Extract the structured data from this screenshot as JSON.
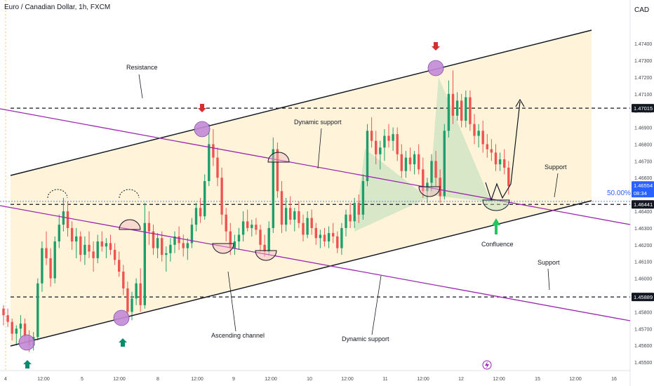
{
  "header": {
    "title": "Euro / Canadian Dollar, 1h, FXCM",
    "currency": "CAD"
  },
  "colors": {
    "bg": "#ffffff",
    "channel_fill": "#fff3d6",
    "up": "#1e9e6a",
    "down": "#ef5350",
    "purple_line": "#9c27b0",
    "marker_fill": "#c48ad6",
    "support_fill": "#b5dcb5",
    "arrow_down": "#d32f2f",
    "arrow_up": "#0b8b6d",
    "confluence_arrow": "#22c55e",
    "fib_label": "#2962ff",
    "axis_text": "#434651"
  },
  "chart_data": {
    "type": "candlestick",
    "instrument": "Euro / Canadian Dollar",
    "timeframe": "1h",
    "source": "FXCM",
    "y_ticks": [
      "1.47400",
      "1.47300",
      "1.47200",
      "1.47100",
      "1.47000",
      "1.46900",
      "1.46800",
      "1.46700",
      "1.46600",
      "1.46500",
      "1.46400",
      "1.46300",
      "1.46200",
      "1.46100",
      "1.46000",
      "1.45900",
      "1.45800",
      "1.45700",
      "1.45600",
      "1.45500"
    ],
    "x_ticks": [
      "4",
      "12:00",
      "5",
      "12:00",
      "8",
      "12:00",
      "9",
      "12:00",
      "10",
      "12:00",
      "11",
      "12:00",
      "12",
      "12:00",
      "15",
      "12:00",
      "16"
    ],
    "ylim": [
      1.4545,
      1.4766
    ],
    "candles": [
      [
        1.4582,
        1.4584,
        1.4572,
        1.4578
      ],
      [
        1.4578,
        1.4582,
        1.4571,
        1.4574
      ],
      [
        1.4574,
        1.4576,
        1.4563,
        1.4567
      ],
      [
        1.4567,
        1.4572,
        1.456,
        1.457
      ],
      [
        1.457,
        1.4578,
        1.4565,
        1.4573
      ],
      [
        1.4573,
        1.4576,
        1.4561,
        1.4565
      ],
      [
        1.4565,
        1.4569,
        1.4556,
        1.456
      ],
      [
        1.456,
        1.4568,
        1.4557,
        1.4565
      ],
      [
        1.4565,
        1.46,
        1.4563,
        1.4597
      ],
      [
        1.4597,
        1.4622,
        1.4592,
        1.4618
      ],
      [
        1.4618,
        1.4628,
        1.4608,
        1.4612
      ],
      [
        1.4612,
        1.4618,
        1.4595,
        1.46
      ],
      [
        1.46,
        1.4625,
        1.4597,
        1.4622
      ],
      [
        1.4622,
        1.4638,
        1.4618,
        1.4632
      ],
      [
        1.4632,
        1.4648,
        1.4628,
        1.464
      ],
      [
        1.464,
        1.4646,
        1.4625,
        1.463
      ],
      [
        1.463,
        1.4634,
        1.4617,
        1.4622
      ],
      [
        1.4622,
        1.463,
        1.4612,
        1.4625
      ],
      [
        1.4625,
        1.4628,
        1.461,
        1.4614
      ],
      [
        1.4614,
        1.4625,
        1.4608,
        1.462
      ],
      [
        1.462,
        1.4628,
        1.4612,
        1.4616
      ],
      [
        1.4616,
        1.4622,
        1.4604,
        1.4612
      ],
      [
        1.4612,
        1.4626,
        1.4609,
        1.4622
      ],
      [
        1.4622,
        1.4628,
        1.4616,
        1.4619
      ],
      [
        1.4619,
        1.4624,
        1.4612,
        1.4621
      ],
      [
        1.4621,
        1.4626,
        1.4614,
        1.4617
      ],
      [
        1.4617,
        1.4621,
        1.4608,
        1.4611
      ],
      [
        1.4611,
        1.4616,
        1.4601,
        1.4604
      ],
      [
        1.4604,
        1.4608,
        1.459,
        1.4594
      ],
      [
        1.4594,
        1.4598,
        1.4576,
        1.458
      ],
      [
        1.458,
        1.4592,
        1.4575,
        1.4588
      ],
      [
        1.4588,
        1.46,
        1.4584,
        1.4597
      ],
      [
        1.4597,
        1.4606,
        1.458,
        1.4584
      ],
      [
        1.4584,
        1.4645,
        1.4582,
        1.4633
      ],
      [
        1.4633,
        1.464,
        1.462,
        1.4628
      ],
      [
        1.4628,
        1.4632,
        1.4614,
        1.4618
      ],
      [
        1.4618,
        1.4627,
        1.4612,
        1.4624
      ],
      [
        1.4624,
        1.4628,
        1.461,
        1.4614
      ],
      [
        1.4614,
        1.4619,
        1.4604,
        1.4615
      ],
      [
        1.4615,
        1.4624,
        1.461,
        1.462
      ],
      [
        1.462,
        1.4628,
        1.4615,
        1.4625
      ],
      [
        1.4625,
        1.4631,
        1.4617,
        1.4621
      ],
      [
        1.4621,
        1.4626,
        1.4613,
        1.4618
      ],
      [
        1.4618,
        1.4624,
        1.4611,
        1.4621
      ],
      [
        1.4621,
        1.4636,
        1.4618,
        1.4632
      ],
      [
        1.4632,
        1.4645,
        1.4628,
        1.4642
      ],
      [
        1.4642,
        1.4648,
        1.4633,
        1.4637
      ],
      [
        1.4637,
        1.4662,
        1.4635,
        1.4658
      ],
      [
        1.4658,
        1.4692,
        1.4655,
        1.468
      ],
      [
        1.468,
        1.4689,
        1.4667,
        1.4672
      ],
      [
        1.4672,
        1.4678,
        1.4655,
        1.466
      ],
      [
        1.466,
        1.4666,
        1.4632,
        1.4638
      ],
      [
        1.4638,
        1.4642,
        1.4622,
        1.4628
      ],
      [
        1.4628,
        1.4633,
        1.4614,
        1.4618
      ],
      [
        1.4618,
        1.4626,
        1.4614,
        1.4622
      ],
      [
        1.4622,
        1.463,
        1.4617,
        1.4626
      ],
      [
        1.4626,
        1.464,
        1.4622,
        1.4634
      ],
      [
        1.4634,
        1.4641,
        1.4628,
        1.463
      ],
      [
        1.463,
        1.4635,
        1.4625,
        1.4632
      ],
      [
        1.4632,
        1.4636,
        1.4626,
        1.4629
      ],
      [
        1.4629,
        1.4632,
        1.4616,
        1.462
      ],
      [
        1.462,
        1.4626,
        1.4613,
        1.4616
      ],
      [
        1.4616,
        1.4634,
        1.4614,
        1.463
      ],
      [
        1.463,
        1.4684,
        1.4627,
        1.4677
      ],
      [
        1.4677,
        1.4681,
        1.4648,
        1.4652
      ],
      [
        1.4652,
        1.4658,
        1.4627,
        1.4632
      ],
      [
        1.4632,
        1.4648,
        1.4628,
        1.4642
      ],
      [
        1.4642,
        1.4649,
        1.4632,
        1.4635
      ],
      [
        1.4635,
        1.4642,
        1.4628,
        1.464
      ],
      [
        1.464,
        1.4646,
        1.463,
        1.4633
      ],
      [
        1.4633,
        1.4638,
        1.4622,
        1.4626
      ],
      [
        1.4626,
        1.464,
        1.4624,
        1.4636
      ],
      [
        1.4636,
        1.4641,
        1.4626,
        1.463
      ],
      [
        1.463,
        1.4633,
        1.462,
        1.4624
      ],
      [
        1.4624,
        1.4629,
        1.4618,
        1.4626
      ],
      [
        1.4626,
        1.463,
        1.4619,
        1.4622
      ],
      [
        1.4622,
        1.4631,
        1.4618,
        1.4627
      ],
      [
        1.4627,
        1.4633,
        1.4621,
        1.4625
      ],
      [
        1.4625,
        1.4628,
        1.4615,
        1.4618
      ],
      [
        1.4618,
        1.4633,
        1.4614,
        1.463
      ],
      [
        1.463,
        1.4641,
        1.4625,
        1.4638
      ],
      [
        1.4638,
        1.4645,
        1.463,
        1.4634
      ],
      [
        1.4634,
        1.4648,
        1.463,
        1.4645
      ],
      [
        1.4645,
        1.465,
        1.4633,
        1.4638
      ],
      [
        1.4638,
        1.4662,
        1.4635,
        1.4658
      ],
      [
        1.4658,
        1.4692,
        1.4655,
        1.4688
      ],
      [
        1.4688,
        1.4696,
        1.4678,
        1.4682
      ],
      [
        1.4682,
        1.4688,
        1.4668,
        1.4674
      ],
      [
        1.4674,
        1.4682,
        1.4665,
        1.4678
      ],
      [
        1.4678,
        1.4689,
        1.467,
        1.4685
      ],
      [
        1.4685,
        1.4692,
        1.4678,
        1.4682
      ],
      [
        1.4682,
        1.469,
        1.4676,
        1.4686
      ],
      [
        1.4686,
        1.469,
        1.467,
        1.4674
      ],
      [
        1.4674,
        1.468,
        1.466,
        1.4664
      ],
      [
        1.4664,
        1.4676,
        1.466,
        1.4672
      ],
      [
        1.4672,
        1.4678,
        1.4664,
        1.4668
      ],
      [
        1.4668,
        1.4676,
        1.4662,
        1.4674
      ],
      [
        1.4674,
        1.468,
        1.4662,
        1.4665
      ],
      [
        1.4665,
        1.4672,
        1.4648,
        1.4652
      ],
      [
        1.4652,
        1.466,
        1.4645,
        1.4657
      ],
      [
        1.4657,
        1.4674,
        1.4652,
        1.467
      ],
      [
        1.467,
        1.4676,
        1.4655,
        1.466
      ],
      [
        1.466,
        1.4665,
        1.4645,
        1.4649
      ],
      [
        1.4649,
        1.4692,
        1.4647,
        1.4688
      ],
      [
        1.4688,
        1.4718,
        1.4684,
        1.471
      ],
      [
        1.471,
        1.4724,
        1.4692,
        1.4697
      ],
      [
        1.4697,
        1.4711,
        1.4694,
        1.4706
      ],
      [
        1.4706,
        1.471,
        1.469,
        1.4694
      ],
      [
        1.4694,
        1.4712,
        1.469,
        1.4708
      ],
      [
        1.4708,
        1.4712,
        1.4688,
        1.4692
      ],
      [
        1.4692,
        1.4698,
        1.468,
        1.4685
      ],
      [
        1.4685,
        1.4692,
        1.4678,
        1.4688
      ],
      [
        1.4688,
        1.4694,
        1.4675,
        1.468
      ],
      [
        1.468,
        1.4686,
        1.4672,
        1.4677
      ],
      [
        1.4677,
        1.4683,
        1.467,
        1.4675
      ],
      [
        1.4675,
        1.468,
        1.4664,
        1.4668
      ],
      [
        1.4668,
        1.4675,
        1.4664,
        1.4671
      ],
      [
        1.4671,
        1.4677,
        1.4662,
        1.4666
      ],
      [
        1.4666,
        1.467,
        1.465,
        1.4655
      ]
    ],
    "price_labels": [
      "1.47015",
      "1.46554",
      "08:34",
      "1.46441",
      "1.45889"
    ],
    "horizontal_levels": [
      1.47015,
      1.46441,
      1.45889
    ],
    "fib_label": "50.00%",
    "annotations": [
      "Resistance",
      "Dynamic support",
      "Support",
      "Confluence",
      "Support",
      "Ascending channel",
      "Dynamic support"
    ],
    "grid": false
  }
}
